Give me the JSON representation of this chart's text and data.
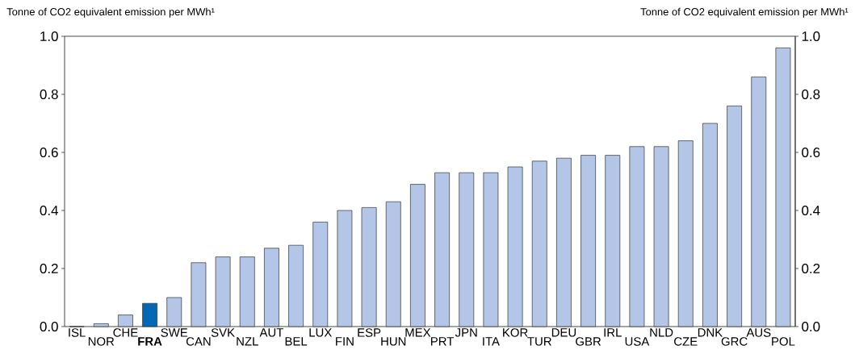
{
  "chart_data": {
    "type": "bar",
    "ylabel": "Tonne of CO2 equivalent emission per MWh¹",
    "y2label": "Tonne of CO2 equivalent emission per MWh¹",
    "categories": [
      "ISL",
      "NOR",
      "CHE",
      "**FRA**",
      "SWE",
      "CAN",
      "SVK",
      "NZL",
      "AUT",
      "BEL",
      "LUX",
      "FIN",
      "ESP",
      "HUN",
      "MEX",
      "PRT",
      "JPN",
      "ITA",
      "KOR",
      "TUR",
      "DEU",
      "GBR",
      "IRL",
      "USA",
      "NLD",
      "CZE",
      "DNK",
      "GRC",
      "AUS",
      "POL"
    ],
    "values": [
      0,
      0.01,
      0.04,
      0.08,
      0.1,
      0.22,
      0.24,
      0.24,
      0.27,
      0.28,
      0.36,
      0.4,
      0.41,
      0.43,
      0.49,
      0.53,
      0.53,
      0.53,
      0.55,
      0.57,
      0.58,
      0.59,
      0.59,
      0.62,
      0.62,
      0.64,
      0.7,
      0.76,
      0.86,
      0.96
    ],
    "colors": [
      "#b3c6e7",
      "#b3c6e7",
      "#b3c6e7",
      "#0067b4",
      "#b3c6e7",
      "#b3c6e7",
      "#b3c6e7",
      "#b3c6e7",
      "#b3c6e7",
      "#b3c6e7",
      "#b3c6e7",
      "#b3c6e7",
      "#b3c6e7",
      "#b3c6e7",
      "#b3c6e7",
      "#b3c6e7",
      "#b3c6e7",
      "#b3c6e7",
      "#b3c6e7",
      "#b3c6e7",
      "#b3c6e7",
      "#b3c6e7",
      "#b3c6e7",
      "#b3c6e7",
      "#b3c6e7",
      "#b3c6e7",
      "#b3c6e7",
      "#b3c6e7",
      "#b3c6e7",
      "#b3c6e7"
    ],
    "ylim": [
      0,
      1.0
    ],
    "yticks": [
      {
        "value": 0,
        "label": "0.0"
      },
      {
        "value": 0.2,
        "label": "0.2"
      },
      {
        "value": 0.4,
        "label": "0.4"
      },
      {
        "value": 0.6,
        "label": "0.6"
      },
      {
        "value": 0.8,
        "label": "0.8"
      },
      {
        "value": 1.0,
        "label": "1.0"
      }
    ],
    "y2lim": [
      0,
      1.0
    ],
    "y2ticks": [
      {
        "value": 0,
        "label": "0.0"
      },
      {
        "value": 0.2,
        "label": "0.2"
      },
      {
        "value": 0.4,
        "label": "0.4"
      },
      {
        "value": 0.6,
        "label": "0.6"
      },
      {
        "value": 0.8,
        "label": "0.8"
      },
      {
        "value": 1.0,
        "label": "1.0"
      }
    ]
  }
}
